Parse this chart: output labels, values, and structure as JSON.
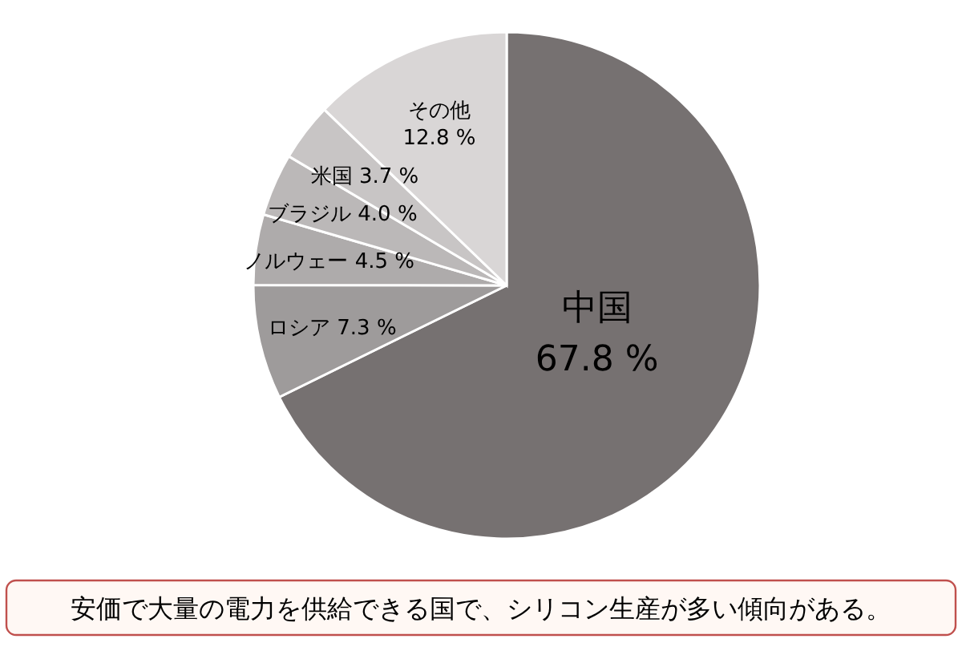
{
  "chart_data": {
    "type": "pie",
    "categories": [
      "中国",
      "ロシア",
      "ノルウェー",
      "ブラジル",
      "米国",
      "その他"
    ],
    "values": [
      67.8,
      7.3,
      4.5,
      4.0,
      3.7,
      12.8
    ],
    "value_labels": [
      "67.8 %",
      "7.3 %",
      "4.5 %",
      "4.0 %",
      "3.7 %",
      "12.8 %"
    ],
    "colors": [
      "#767171",
      "#9e9b9b",
      "#aeabab",
      "#bbb8b8",
      "#c8c5c5",
      "#d9d6d6"
    ],
    "annotations": [
      "安価で大量の電力を供給できる国で、シリコン生産が多い傾向がある。"
    ]
  }
}
